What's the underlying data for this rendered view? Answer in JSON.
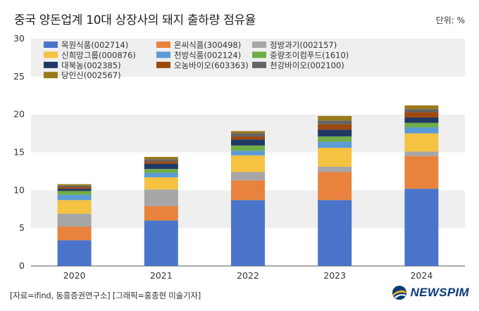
{
  "header": {
    "title": "중국 양돈업계 10대 상장사의 돼지 출하량 점유율",
    "unit": "단위: %"
  },
  "footer": {
    "source": "[자료=ifind, 동흥증권연구소] [그래픽=홍종현 미술기자]",
    "brand": "NEWSPIM"
  },
  "chart_data": {
    "type": "bar",
    "stacked": true,
    "title": "중국 양돈업계 10대 상장사의 돼지 출하량 점유율",
    "unit": "단위: %",
    "categories": [
      "2020",
      "2021",
      "2022",
      "2023",
      "2024"
    ],
    "ylim": [
      0,
      30
    ],
    "yticks": [
      0,
      5,
      10,
      15,
      20,
      25,
      30
    ],
    "grid": "alternating horizontal bands",
    "legend_position": "top-left",
    "series": [
      {
        "name": "목원식품(002714)",
        "color": "#4a74c9",
        "values": [
          3.4,
          6.0,
          8.7,
          8.7,
          10.2
        ]
      },
      {
        "name": "온씨식품(300498)",
        "color": "#e8823c",
        "values": [
          1.8,
          1.9,
          2.6,
          3.7,
          4.3
        ]
      },
      {
        "name": "정방과기(002157)",
        "color": "#a6a6a6",
        "values": [
          1.7,
          2.2,
          1.1,
          0.7,
          0.6
        ]
      },
      {
        "name": "신희망그룹(000876)",
        "color": "#f5c242",
        "values": [
          1.8,
          1.6,
          2.2,
          2.5,
          2.4
        ]
      },
      {
        "name": "천방식품(002124)",
        "color": "#5b9bd5",
        "values": [
          0.7,
          0.6,
          0.6,
          0.8,
          0.8
        ]
      },
      {
        "name": "중량조이컴푸드(1610)",
        "color": "#70ad47",
        "values": [
          0.5,
          0.5,
          0.7,
          0.7,
          0.6
        ]
      },
      {
        "name": "대북농(002385)",
        "color": "#203864",
        "values": [
          0.3,
          0.7,
          0.8,
          0.9,
          0.7
        ]
      },
      {
        "name": "오농바이오(603363)",
        "color": "#9e480e",
        "values": [
          0.2,
          0.3,
          0.4,
          0.7,
          0.7
        ]
      },
      {
        "name": "천강바이오(002100)",
        "color": "#636363",
        "values": [
          0.2,
          0.3,
          0.4,
          0.5,
          0.4
        ]
      },
      {
        "name": "당인신(002567)",
        "color": "#997a1c",
        "values": [
          0.2,
          0.3,
          0.3,
          0.6,
          0.5
        ]
      }
    ]
  }
}
